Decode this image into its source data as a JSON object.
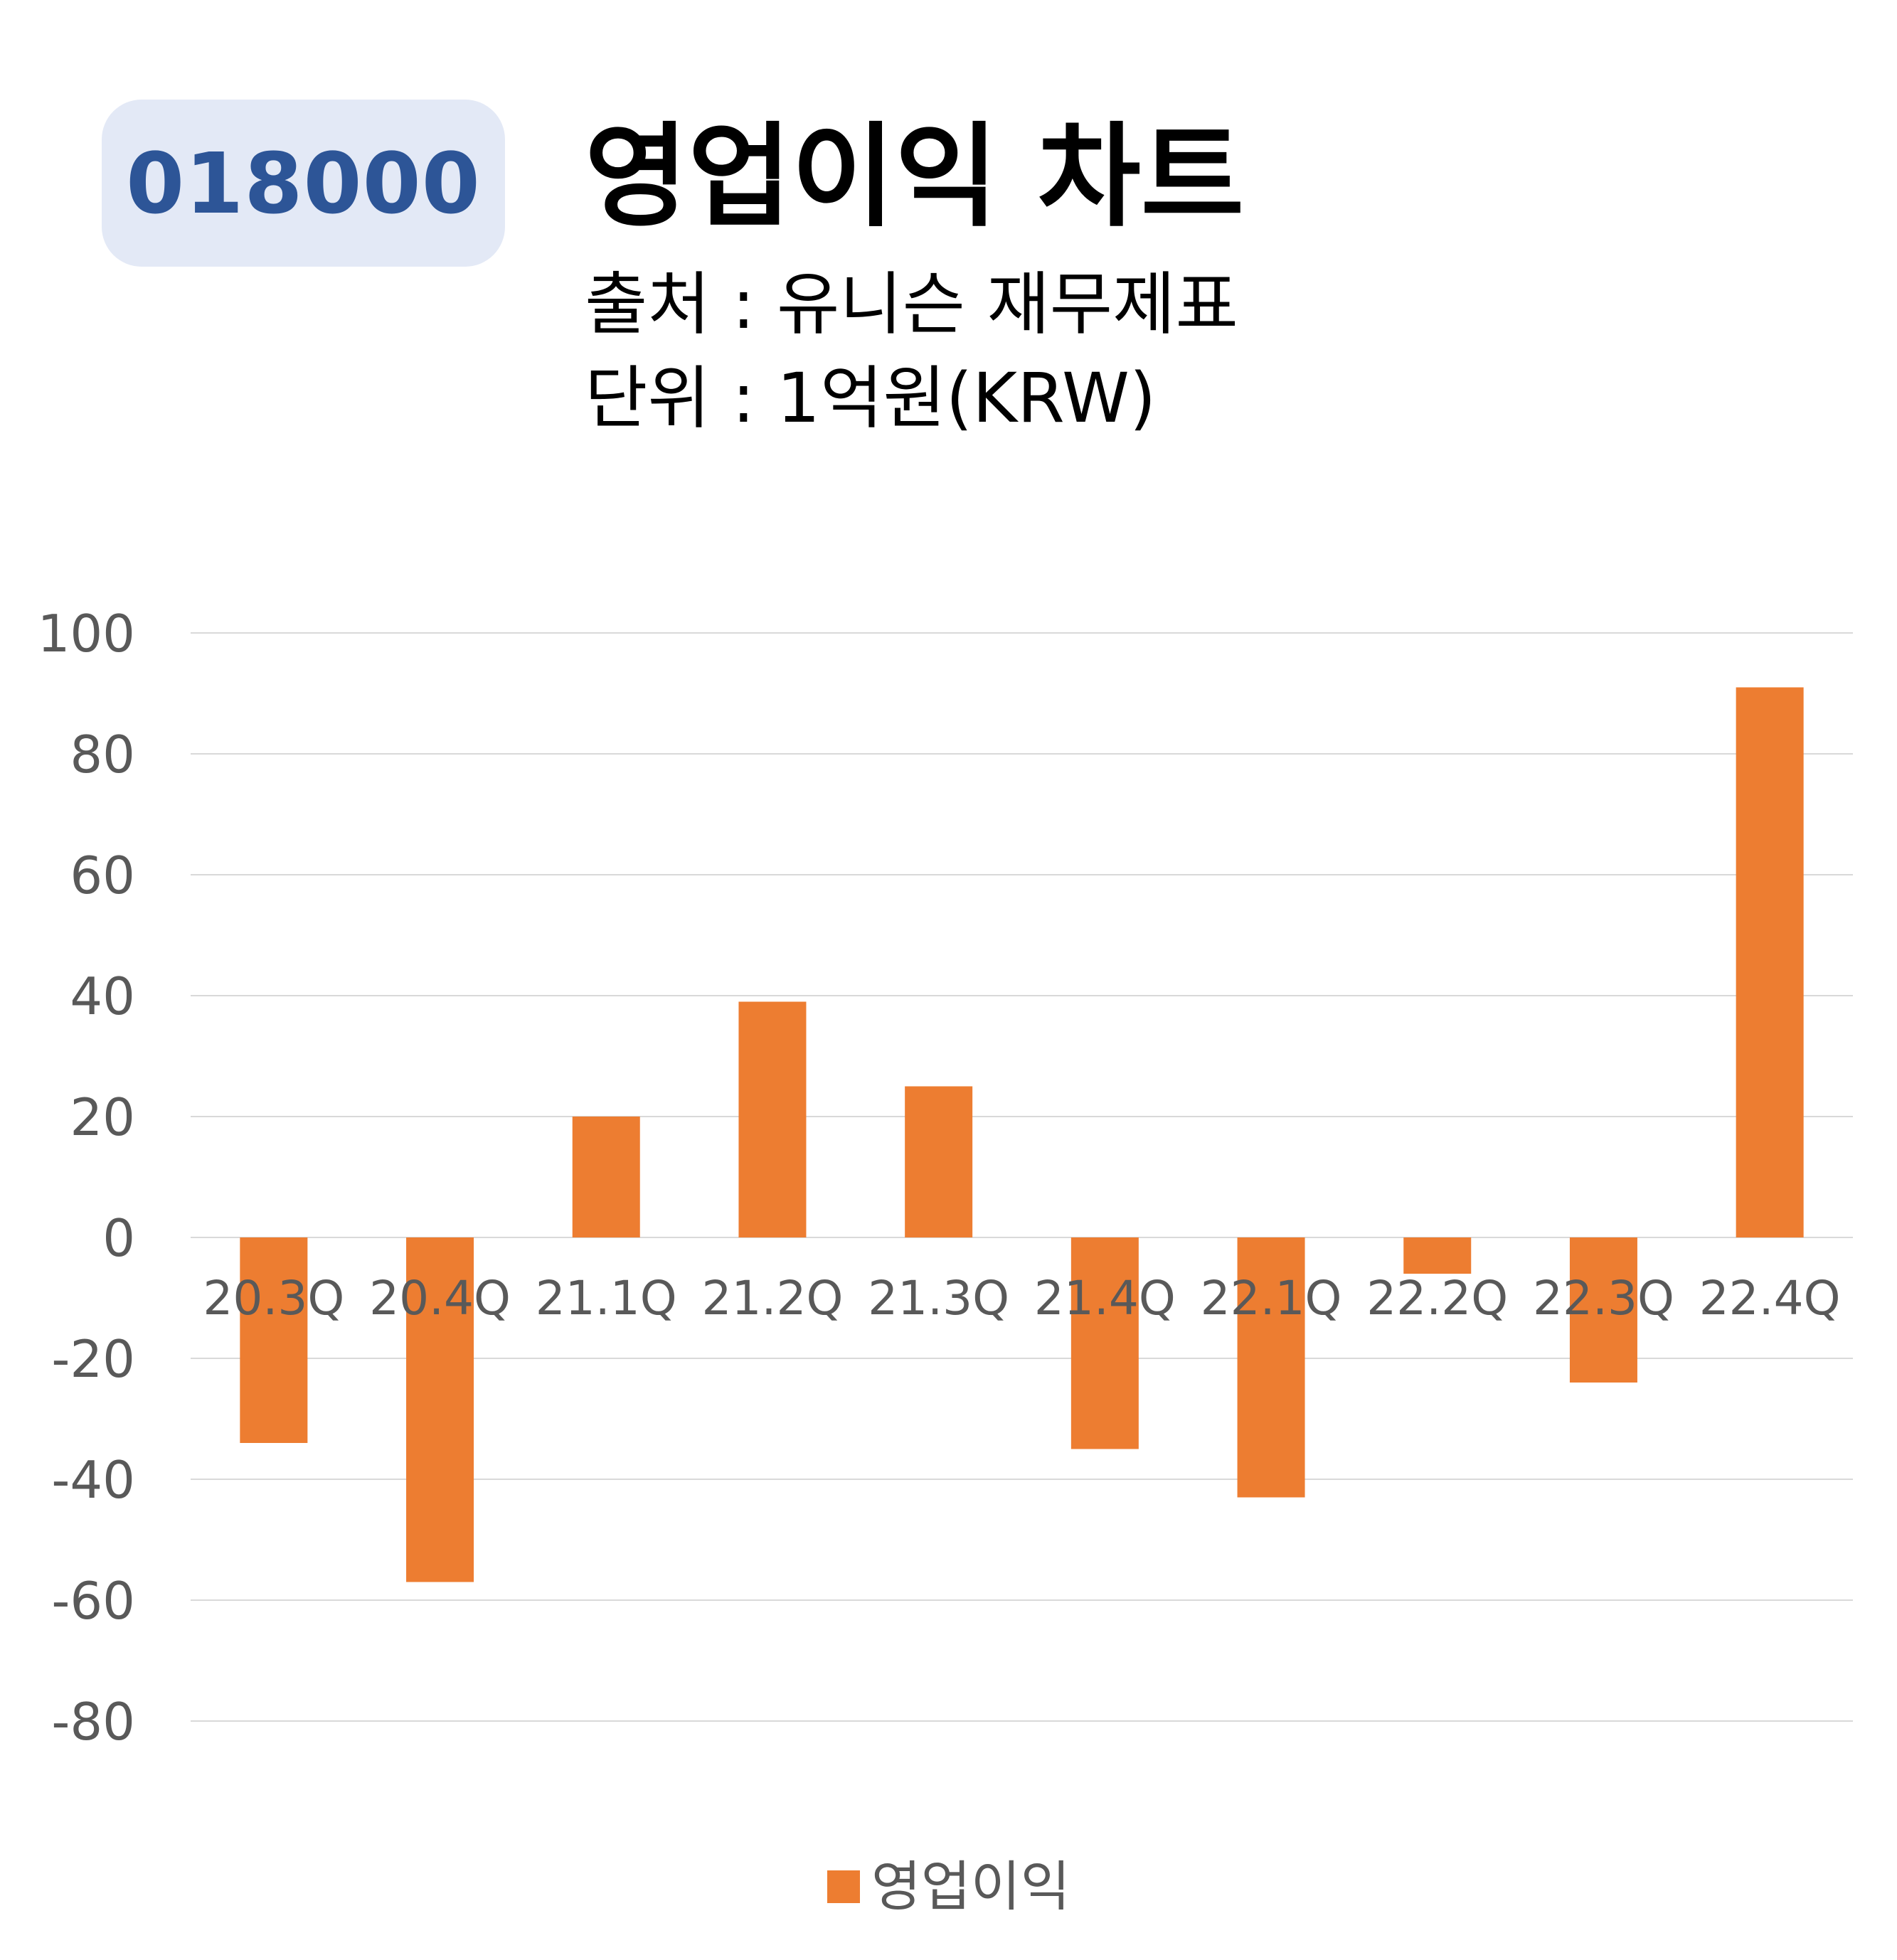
{
  "header": {
    "ticker": "018000",
    "title": "영업이익 차트",
    "source": "출처 : 유니슨 재무제표",
    "unit": "단위 : 1억원(KRW)"
  },
  "colors": {
    "badge_bg": "#e3e9f6",
    "badge_text": "#2d5597",
    "bar": "#ed7d31",
    "grid": "#d9d9d9",
    "axis_text": "#595959"
  },
  "chart_data": {
    "type": "bar",
    "categories": [
      "20.3Q",
      "20.4Q",
      "21.1Q",
      "21.2Q",
      "21.3Q",
      "21.4Q",
      "22.1Q",
      "22.2Q",
      "22.3Q",
      "22.4Q"
    ],
    "series": [
      {
        "name": "영업이익",
        "values": [
          -34,
          -57,
          20,
          39,
          25,
          -35,
          -43,
          -6,
          -24,
          91
        ]
      }
    ],
    "yticks": [
      100,
      80,
      60,
      40,
      20,
      0,
      -20,
      -40,
      -60,
      -80
    ],
    "ylim": [
      -80,
      100
    ],
    "grid": true,
    "legend": "bottom"
  }
}
